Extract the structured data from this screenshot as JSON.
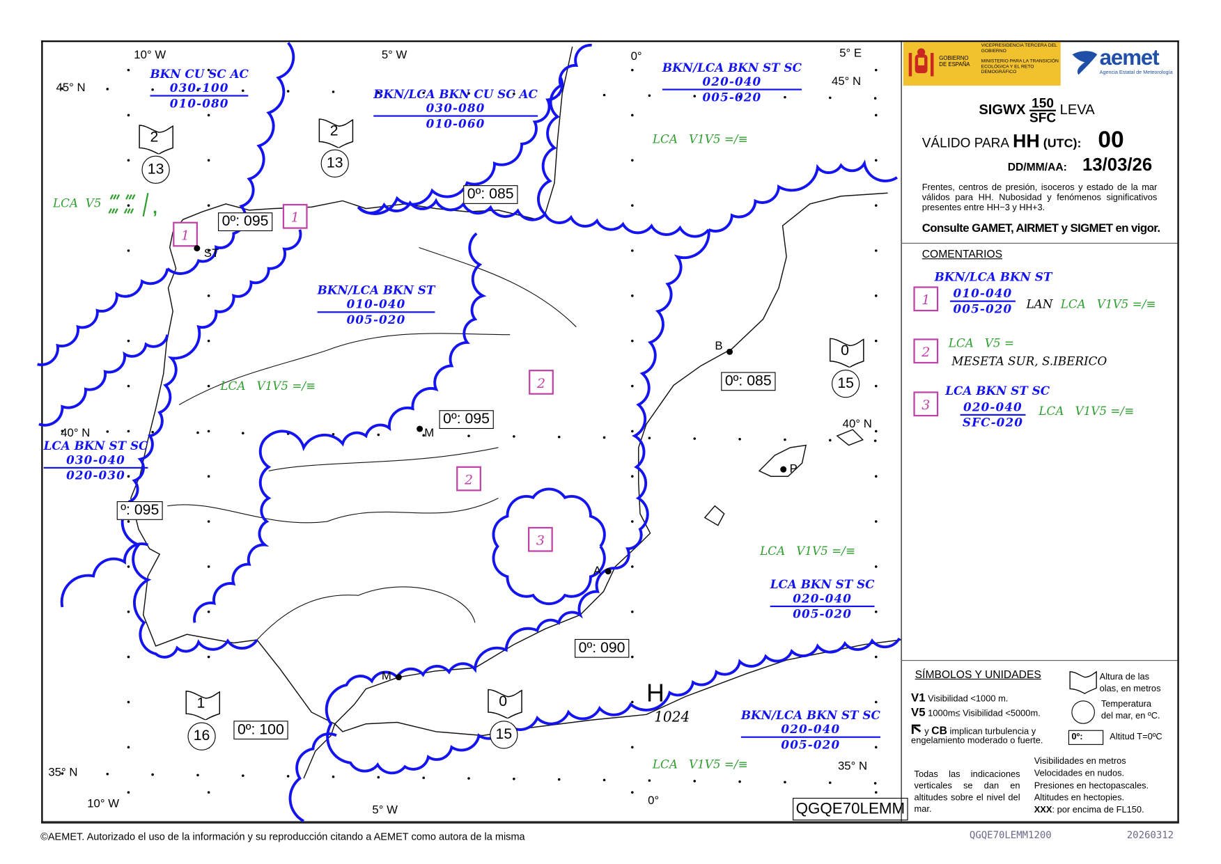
{
  "colors": {
    "cloud_boundary": "#1414f0",
    "visibility": "#2e9e2e",
    "area_marker": "#c040a8",
    "logo_yellow": "#f2c12e",
    "aemet_blue": "#1f4fa8"
  },
  "map": {
    "graticule_labels": [
      "10° W",
      "5° W",
      "0°",
      "5° E",
      "45° N",
      "45° N",
      "40° N",
      "40° N",
      "35° N",
      "35° N",
      "10° W",
      "5° W",
      "0°"
    ],
    "cloud_labels": [
      {
        "type": "BKN CU SC AC",
        "top": "030-100",
        "base": "010-080"
      },
      {
        "type": "BKN/LCA BKN CU SC AC",
        "top": "030-080",
        "base": "010-060"
      },
      {
        "type": "BKN/LCA BKN ST SC",
        "top": "020-040",
        "base": "005-020"
      },
      {
        "type": "BKN/LCA BKN ST",
        "top": "010-040",
        "base": "005-020"
      },
      {
        "type": "LCA BKN ST SC",
        "top": "030-040",
        "base": "020-030"
      },
      {
        "type": "LCA BKN ST SC",
        "top": "020-040",
        "base": "005-020"
      },
      {
        "type": "BKN/LCA BKN ST SC",
        "top": "020-040",
        "base": "005-020"
      }
    ],
    "visibility_labels": [
      "LCA   V1V5 =/≡",
      "LCA   V1V5 =/≡",
      "LCA   V1V5 =/≡",
      "LCA   V1V5 =/≡"
    ],
    "drizzle_label": "LCA  V5",
    "freezing_levels": [
      "0º: 095",
      "0º: 085",
      "0º: 085",
      "0º: 095",
      "º: 095",
      "0º: 090",
      "0º: 100"
    ],
    "wave_heights": [
      "2",
      "2",
      "0",
      "1",
      "0"
    ],
    "sea_temps": [
      "13",
      "13",
      "15",
      "16",
      "15"
    ],
    "area_markers": [
      "1",
      "1",
      "2",
      "2",
      "3"
    ],
    "stations": [
      "ST",
      "M",
      "B",
      "P",
      "A",
      "M"
    ],
    "pressure_center": {
      "symbol": "H",
      "value": "1024"
    },
    "bulletin_id": "QGQE70LEMM"
  },
  "panel": {
    "logo": {
      "gov": "GOBIERNO DE ESPAÑA",
      "vice": "VICEPRESIDENCIA TERCERA DEL GOBIERNO",
      "ministry": "MINISTERIO PARA LA TRANSICIÓN ECOLÓGICA Y EL RETO DEMOGRÁFICO",
      "aemet": "aemet",
      "aemet_sub": "Agencia Estatal de Meteorología"
    },
    "product": "SIGWX",
    "level_top": "150",
    "level_bottom": "SFC",
    "region": "LEVA",
    "valid_label": "VÁLIDO PARA",
    "hh": "HH",
    "utc": "(UTC):",
    "hour": "00",
    "date_label": "DD/MM/AA:",
    "date": "13/03/26",
    "note": "Frentes, centros de presión, isoceros y estado de la mar válidos para HH. Nubosidad y fenómenos significativos presentes entre HH−3 y HH+3.",
    "consult": "Consulte GAMET, AIRMET y SIGMET en vigor.",
    "comments_title": "COMENTARIOS",
    "comments": [
      {
        "id": "1",
        "type": "BKN/LCA BKN ST",
        "top": "010-040",
        "base": "005-020",
        "extra": "LAN",
        "vis": "LCA   V1V5 =/≡"
      },
      {
        "id": "2",
        "vis": "LCA   V5 =",
        "extra": "MESETA SUR, S.IBERICO"
      },
      {
        "id": "3",
        "type": "LCA BKN ST SC",
        "top": "020-040",
        "base": "SFC-020",
        "vis": "LCA   V1V5 =/≡"
      }
    ],
    "symbols": {
      "title": "SÍMBOLOS Y UNIDADES",
      "v1": "V1",
      "v1_desc": "Visibilidad <1000 m.",
      "v5": "V5",
      "v5_desc": "1000m≤ Visibilidad <5000m.",
      "turb_cb": "CB",
      "turb_y": "y",
      "turb_desc": "implican turbulencia y",
      "turb_desc2": "engelamiento moderado o fuerte.",
      "wave_desc": [
        "Altura de las",
        "olas, en metros"
      ],
      "temp_desc": [
        "Temperatura",
        "del mar, en ºC."
      ],
      "fz_box": "0º:",
      "fz_desc": "Altitud T=0ºC",
      "vertical_note": "Todas las indicaciones verticales se dan en altitudes sobre el nivel del mar.",
      "units": [
        "Visibilidades en metros",
        "Velocidades en nudos.",
        "Presiones en hectopascales.",
        "Altitudes en hectopies."
      ],
      "xxx": "XXX",
      "xxx_desc": ": por encima de FL150."
    }
  },
  "footer": {
    "copyright": "©AEMET. Autorizado el uso de la información y su reproducción citando a AEMET como autora de la misma",
    "code": "QGQE70LEMM1200",
    "date": "20260312"
  }
}
